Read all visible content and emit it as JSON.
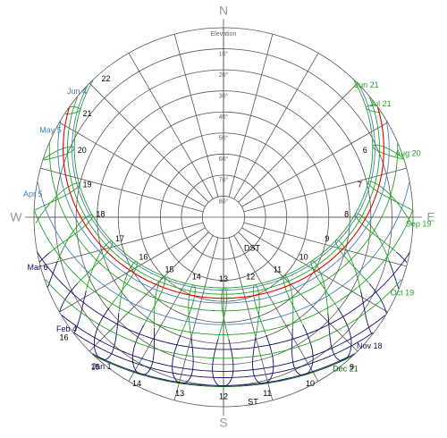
{
  "compass": {
    "n": "N",
    "e": "E",
    "s": "S",
    "w": "W"
  },
  "elevation": {
    "title": "Elevation",
    "labels": [
      "10°",
      "20°",
      "30°",
      "40°",
      "50°",
      "60°",
      "70°",
      "80°"
    ]
  },
  "dates": {
    "right": [
      {
        "label": "Jun 21",
        "color": "#22a022"
      },
      {
        "label": "Jul 21",
        "color": "#22a022"
      },
      {
        "label": "Aug 20",
        "color": "#22a022"
      },
      {
        "label": "Sep 19",
        "color": "#22a022"
      },
      {
        "label": "Oct 19",
        "color": "#22a022"
      },
      {
        "label": "Nov 18",
        "color": "#101060"
      },
      {
        "label": "Dec 21",
        "color": "#106010"
      }
    ],
    "left": [
      {
        "label": "Jun 4",
        "color": "#4682b4"
      },
      {
        "label": "May 5",
        "color": "#4682b4"
      },
      {
        "label": "Apr 5",
        "color": "#4682b4"
      },
      {
        "label": "Mar 6",
        "color": "#101070"
      },
      {
        "label": "Feb 4",
        "color": "#101070"
      },
      {
        "label": "Jan 1",
        "color": "#101070"
      }
    ]
  },
  "hours": {
    "dst": [
      6,
      7,
      8,
      9,
      10,
      11,
      12,
      13,
      14,
      15,
      16,
      17,
      18,
      19,
      20,
      21,
      22
    ],
    "dst_label": "DST",
    "st": [
      9,
      10,
      11,
      12,
      13,
      14,
      15,
      16
    ],
    "st_label": "ST"
  }
}
